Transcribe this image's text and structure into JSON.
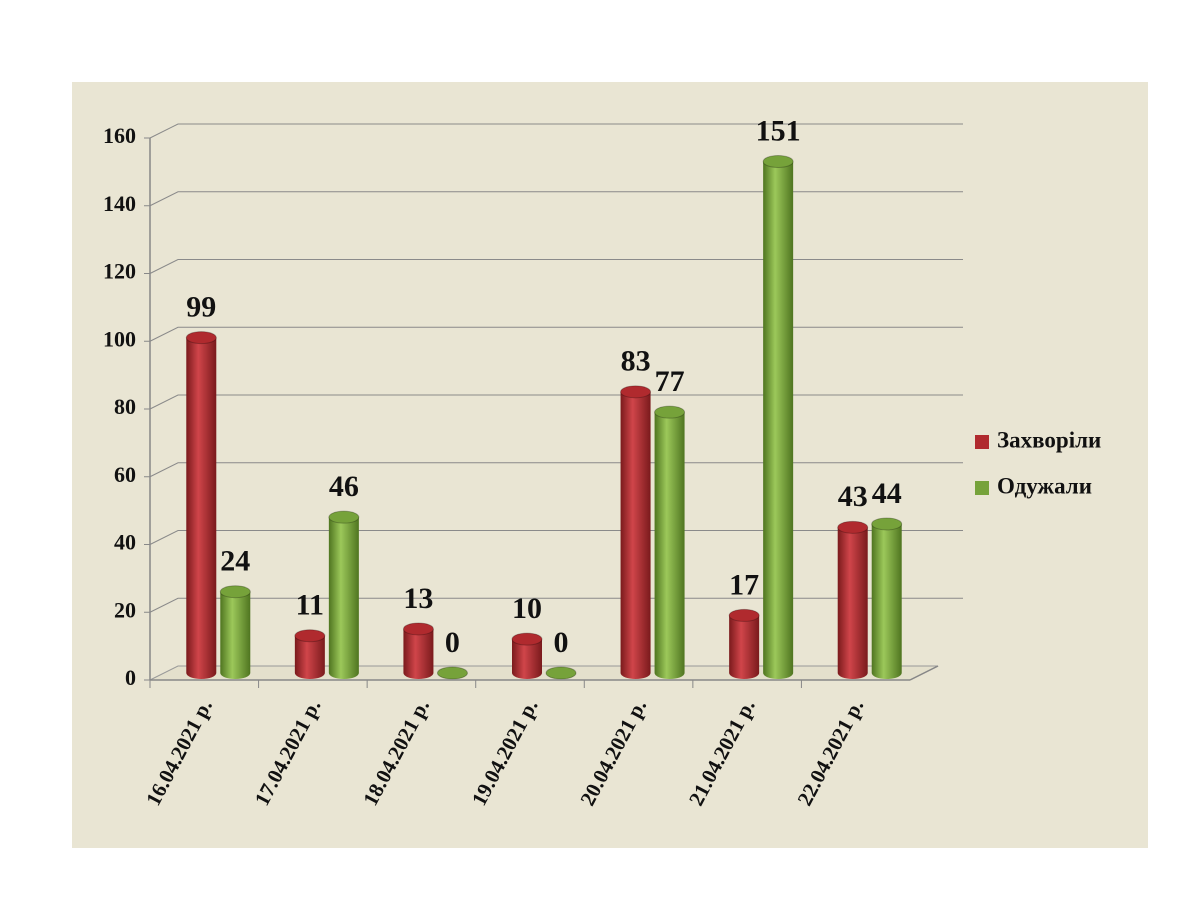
{
  "chart_data": {
    "type": "bar",
    "categories": [
      "16.04.2021 р.",
      "17.04.2021 р.",
      "18.04.2021 р.",
      "19.04.2021 р.",
      "20.04.2021 р.",
      "21.04.2021 р.",
      "22.04.2021 р."
    ],
    "series": [
      {
        "name": "Захворіли",
        "color": "#b02a2e",
        "values": [
          99,
          11,
          13,
          10,
          83,
          17,
          43
        ]
      },
      {
        "name": "Одужали",
        "color": "#76a23a",
        "values": [
          24,
          46,
          0,
          0,
          77,
          151,
          44
        ]
      }
    ],
    "ylim": [
      0,
      160
    ],
    "yticks": [
      0,
      20,
      40,
      60,
      80,
      100,
      120,
      140,
      160
    ],
    "grid": true,
    "legend": "right"
  }
}
